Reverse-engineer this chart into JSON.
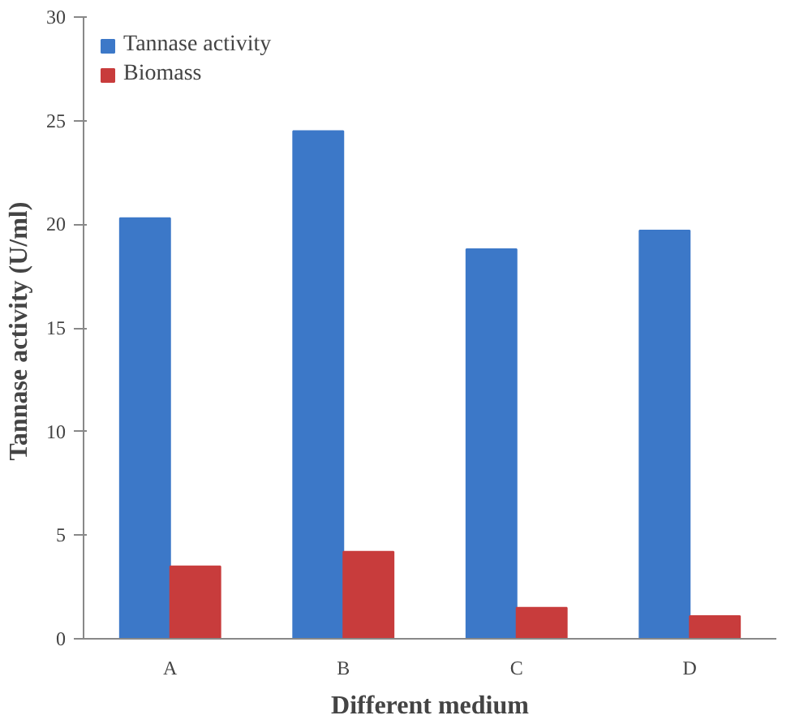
{
  "chart_data": {
    "type": "bar",
    "xlabel": "Different medium",
    "ylabel": "Tannase activity  (U/ml)",
    "categories": [
      "A",
      "B",
      "C",
      "D"
    ],
    "series": [
      {
        "name": "Tannase activity",
        "color": "#3c78c8",
        "values": [
          20.3,
          24.5,
          18.8,
          19.7
        ]
      },
      {
        "name": "Biomass",
        "color": "#c83c3c",
        "values": [
          3.5,
          4.2,
          1.5,
          1.1
        ]
      }
    ],
    "ylim": [
      0,
      30
    ],
    "yticks": [
      0,
      5,
      10,
      15,
      20,
      25,
      30
    ],
    "grid": false,
    "legend": "top left"
  }
}
